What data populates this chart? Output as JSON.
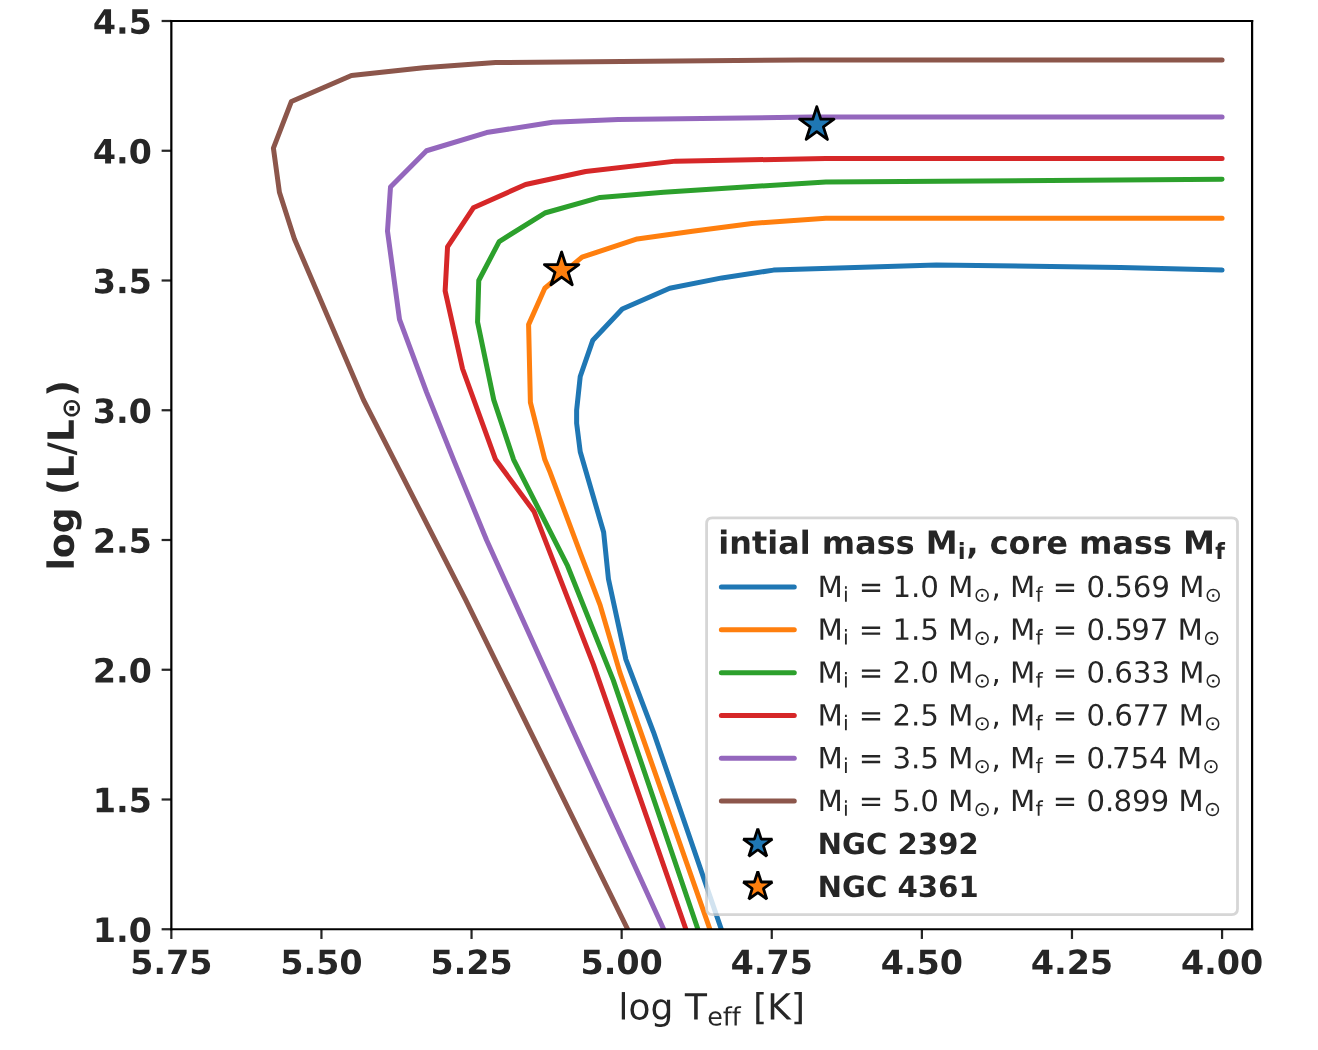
{
  "chart_data": {
    "type": "line",
    "xlabel": "log T$_{eff}$ [K]",
    "ylabel": "log (L/L$_{⊙}$)",
    "legend_title": "intial mass M$_{i}$, core mass M$_{f}$",
    "legend": "bottom right",
    "grid": false,
    "line_style": "solid",
    "marker": "none",
    "xlim": [
      5.75,
      3.95
    ],
    "ylim": [
      1.0,
      4.5
    ],
    "xticks": [
      {
        "value": 5.75,
        "label": "5.75"
      },
      {
        "value": 5.5,
        "label": "5.50"
      },
      {
        "value": 5.25,
        "label": "5.25"
      },
      {
        "value": 5.0,
        "label": "5.00"
      },
      {
        "value": 4.75,
        "label": "4.75"
      },
      {
        "value": 4.5,
        "label": "4.50"
      },
      {
        "value": 4.25,
        "label": "4.25"
      },
      {
        "value": 4.0,
        "label": "4.00"
      }
    ],
    "yticks": [
      {
        "value": 1.0,
        "label": "1.0"
      },
      {
        "value": 1.5,
        "label": "1.5"
      },
      {
        "value": 2.0,
        "label": "2.0"
      },
      {
        "value": 2.5,
        "label": "2.5"
      },
      {
        "value": 3.0,
        "label": "3.0"
      },
      {
        "value": 3.5,
        "label": "3.5"
      },
      {
        "value": 4.0,
        "label": "4.0"
      },
      {
        "value": 4.5,
        "label": "4.5"
      }
    ],
    "series": [
      {
        "name": "M$_{i}$ = 1.0 M$_{⊙}$, M$_{f}$ = 0.569 M$_{⊙}$",
        "color": "#1f77b4",
        "x": [
          4.0,
          4.169,
          4.476,
          4.747,
          4.833,
          4.92,
          4.999,
          5.048,
          5.069,
          5.075,
          5.075,
          5.069,
          5.03,
          5.022,
          4.993,
          4.947,
          4.834
        ],
        "values": [
          3.54,
          3.55,
          3.56,
          3.54,
          3.51,
          3.47,
          3.39,
          3.27,
          3.13,
          3.0,
          2.95,
          2.84,
          2.53,
          2.35,
          2.04,
          1.76,
          1.0
        ]
      },
      {
        "name": "M$_{i}$ = 1.5 M$_{⊙}$, M$_{f}$ = 0.597 M$_{⊙}$",
        "color": "#ff7f0e",
        "x": [
          4.0,
          4.66,
          4.783,
          4.882,
          4.974,
          5.066,
          5.128,
          5.155,
          5.152,
          5.128,
          5.119,
          5.069,
          5.036,
          5.003,
          4.853
        ],
        "values": [
          3.74,
          3.74,
          3.72,
          3.69,
          3.66,
          3.59,
          3.47,
          3.33,
          3.03,
          2.81,
          2.76,
          2.45,
          2.25,
          1.99,
          1.0
        ]
      },
      {
        "name": "M$_{i}$ = 2.0 M$_{⊙}$, M$_{f}$ = 0.633 M$_{⊙}$",
        "color": "#2ca02c",
        "x": [
          4.0,
          4.66,
          4.93,
          5.036,
          5.128,
          5.204,
          5.238,
          5.24,
          5.213,
          5.18,
          5.09,
          5.014,
          4.873
        ],
        "values": [
          3.89,
          3.88,
          3.84,
          3.82,
          3.76,
          3.65,
          3.5,
          3.34,
          3.04,
          2.81,
          2.4,
          1.96,
          1.0
        ]
      },
      {
        "name": "M$_{i}$ = 2.5 M$_{⊙}$, M$_{f}$ = 0.677 M$_{⊙}$",
        "color": "#d62728",
        "x": [
          4.0,
          4.66,
          4.91,
          5.06,
          5.16,
          5.247,
          5.29,
          5.294,
          5.265,
          5.21,
          5.146,
          5.047,
          4.893
        ],
        "values": [
          3.97,
          3.97,
          3.96,
          3.92,
          3.87,
          3.78,
          3.63,
          3.46,
          3.16,
          2.81,
          2.61,
          2.02,
          1.0
        ]
      },
      {
        "name": "M$_{i}$ = 3.5 M$_{⊙}$, M$_{f}$ = 0.754 M$_{⊙}$",
        "color": "#9467bd",
        "x": [
          4.0,
          4.685,
          5.006,
          5.115,
          5.225,
          5.325,
          5.385,
          5.39,
          5.37,
          5.325,
          5.28,
          5.225,
          5.08,
          4.93
        ],
        "values": [
          4.13,
          4.13,
          4.12,
          4.11,
          4.07,
          4.0,
          3.86,
          3.69,
          3.35,
          3.07,
          2.81,
          2.5,
          1.76,
          1.0
        ]
      },
      {
        "name": "M$_{i}$ = 5.0 M$_{⊙}$, M$_{f}$ = 0.899 M$_{⊙}$",
        "color": "#8c564b",
        "x": [
          4.0,
          4.7,
          5.21,
          5.33,
          5.45,
          5.55,
          5.58,
          5.57,
          5.545,
          5.43,
          5.26,
          4.99
        ],
        "values": [
          4.35,
          4.35,
          4.34,
          4.32,
          4.29,
          4.19,
          4.01,
          3.84,
          3.66,
          3.04,
          2.27,
          1.0
        ]
      },
      {
        "name": "NGC 2392",
        "type": "scatter",
        "marker": "star",
        "color": "#1f77b4",
        "x": [
          4.675
        ],
        "values": [
          4.1
        ]
      },
      {
        "name": "NGC 4361",
        "type": "scatter",
        "marker": "star",
        "color": "#ff7f0e",
        "x": [
          5.1
        ],
        "values": [
          3.54
        ]
      }
    ]
  }
}
